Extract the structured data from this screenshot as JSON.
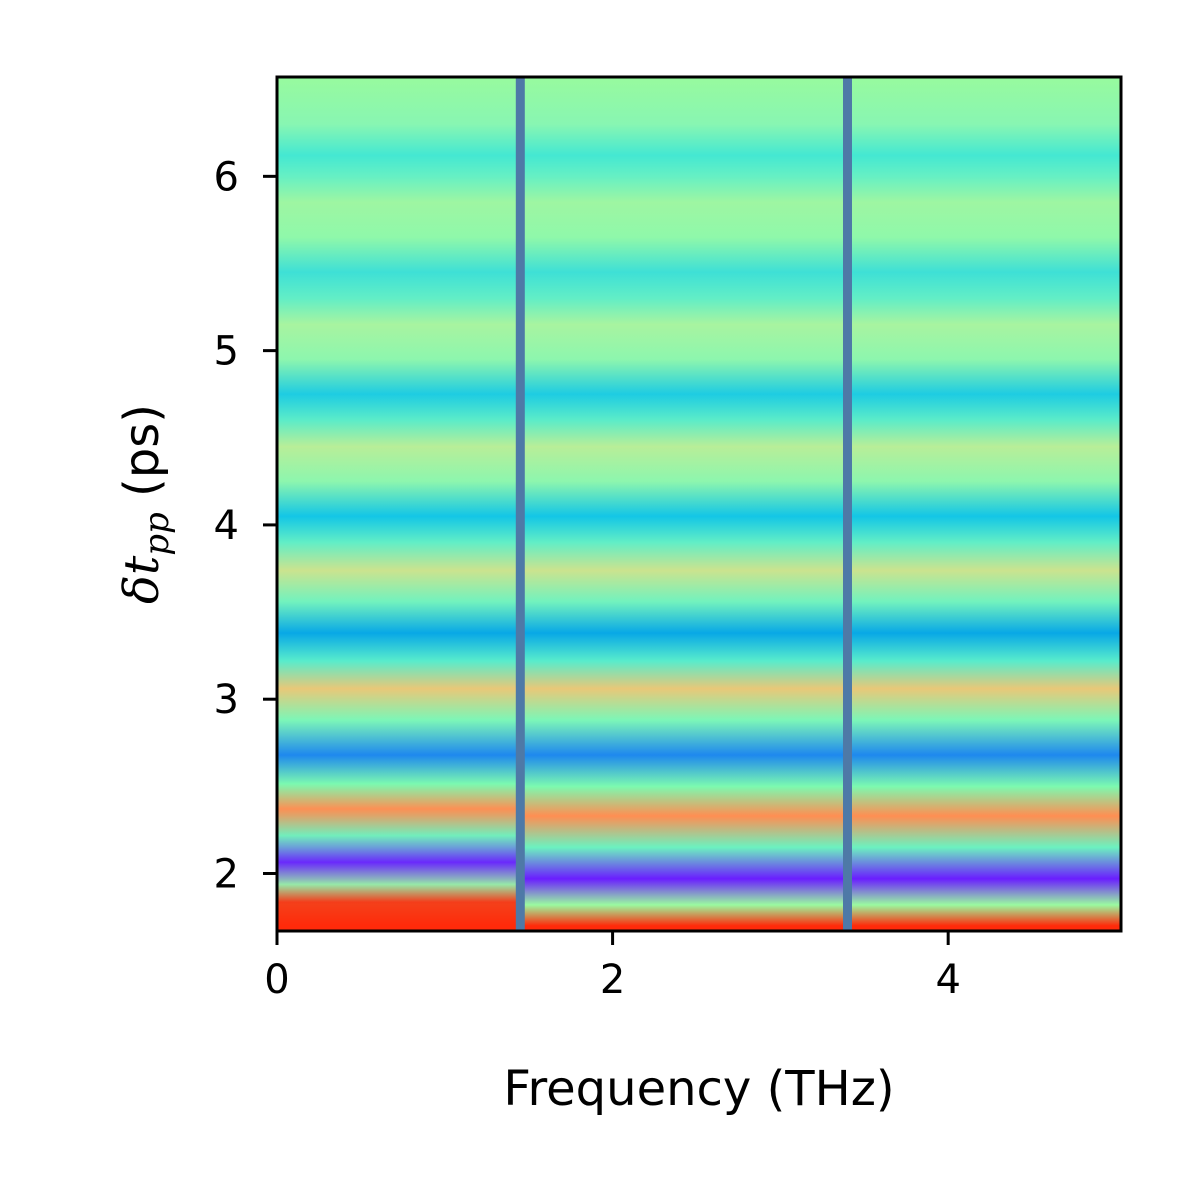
{
  "chart_data": {
    "type": "heatmap",
    "title": "",
    "xlabel": "Frequency (THz)",
    "ylabel": {
      "symbol": "δt",
      "subscript": "pp",
      "unit": " (ps)"
    },
    "xlim": [
      0,
      5.03
    ],
    "ylim": [
      1.67,
      6.57
    ],
    "x_ticks": [
      0,
      2,
      4
    ],
    "x_tick_labels": [
      "0",
      "2",
      "4"
    ],
    "y_ticks": [
      2,
      3,
      4,
      5,
      6
    ],
    "y_tick_labels": [
      "2",
      "3",
      "4",
      "5",
      "6"
    ],
    "colormap": "rainbow",
    "colorbar": false,
    "grid": false,
    "vertical_lines": {
      "x": [
        1.45,
        3.4
      ],
      "color": "#4e79a7"
    },
    "bands": [
      {
        "delta_t": 1.7,
        "color": "#ff2a0a"
      },
      {
        "delta_t": 1.82,
        "color": "#9afaa0"
      },
      {
        "delta_t": 1.97,
        "color": "#6a1eff"
      },
      {
        "delta_t": 2.15,
        "color": "#6cf2c0"
      },
      {
        "delta_t": 2.33,
        "color": "#ff8e52"
      },
      {
        "delta_t": 2.5,
        "color": "#7cfab0"
      },
      {
        "delta_t": 2.68,
        "color": "#1e88ee"
      },
      {
        "delta_t": 2.88,
        "color": "#7cf6b8"
      },
      {
        "delta_t": 3.06,
        "color": "#e8c878"
      },
      {
        "delta_t": 3.22,
        "color": "#58eccc"
      },
      {
        "delta_t": 3.38,
        "color": "#08a8e6"
      },
      {
        "delta_t": 3.56,
        "color": "#72f2be"
      },
      {
        "delta_t": 3.74,
        "color": "#cbe38e"
      },
      {
        "delta_t": 3.9,
        "color": "#62eec6"
      },
      {
        "delta_t": 4.05,
        "color": "#13c6e6"
      },
      {
        "delta_t": 4.25,
        "color": "#8df6ae"
      },
      {
        "delta_t": 4.45,
        "color": "#b8ee98"
      },
      {
        "delta_t": 4.6,
        "color": "#5cecc8"
      },
      {
        "delta_t": 4.75,
        "color": "#1ecce2"
      },
      {
        "delta_t": 4.95,
        "color": "#8df6ae"
      },
      {
        "delta_t": 5.15,
        "color": "#a8f4a0"
      },
      {
        "delta_t": 5.3,
        "color": "#62eec6"
      },
      {
        "delta_t": 5.45,
        "color": "#3ee0d6"
      },
      {
        "delta_t": 5.65,
        "color": "#8ff8aa"
      },
      {
        "delta_t": 5.85,
        "color": "#9ef6a2"
      },
      {
        "delta_t": 6.0,
        "color": "#66f0c4"
      },
      {
        "delta_t": 6.12,
        "color": "#44e8d2"
      },
      {
        "delta_t": 6.3,
        "color": "#88f6b2"
      },
      {
        "delta_t": 6.57,
        "color": "#98fa9e"
      }
    ],
    "low_frequency_region": {
      "x_end": 1.45,
      "max_shift_delta_t": 0.05
    }
  }
}
